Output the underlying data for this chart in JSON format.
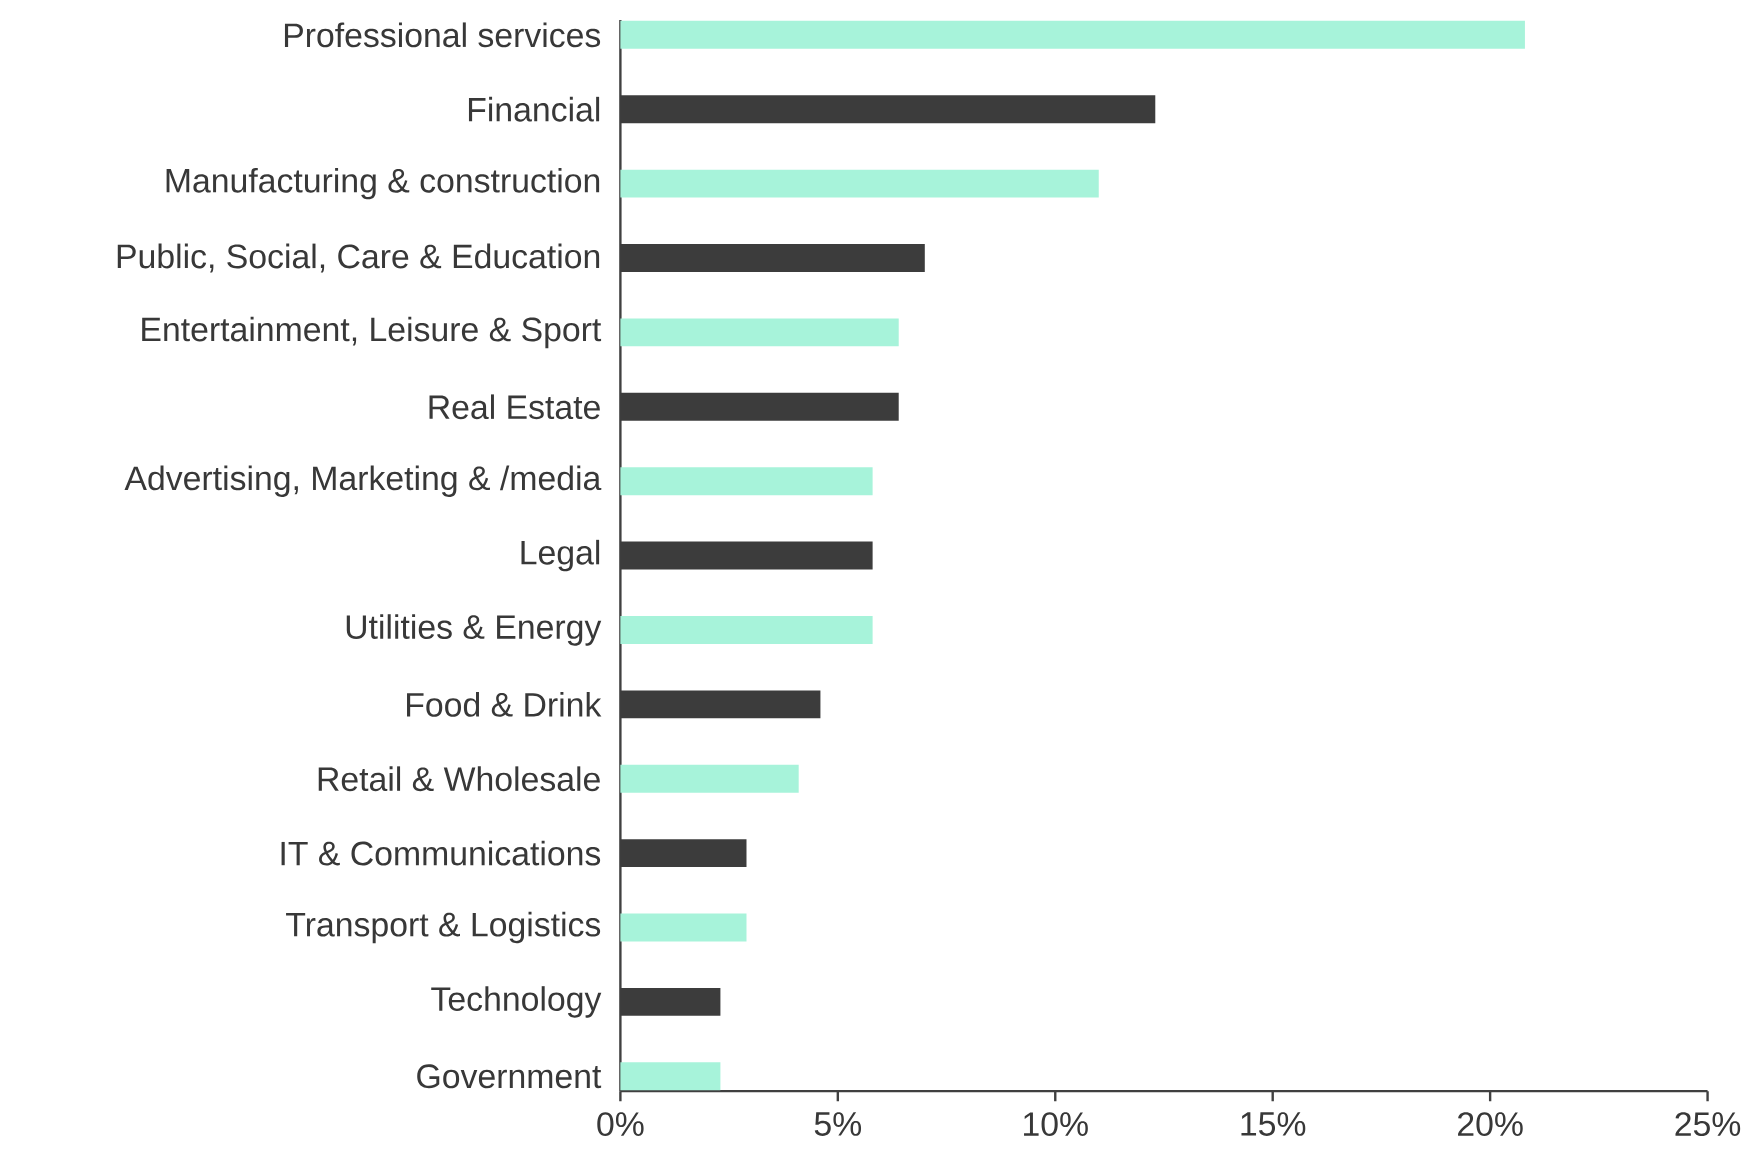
{
  "chart_data": {
    "type": "bar",
    "orientation": "horizontal",
    "categories": [
      "Professional services",
      "Financial",
      "Manufacturing & construction",
      "Public, Social, Care & Education",
      "Entertainment, Leisure & Sport",
      "Real Estate",
      "Advertising, Marketing & /media",
      "Legal",
      "Utilities & Energy",
      "Food & Drink",
      "Retail & Wholesale",
      "IT & Communications",
      "Transport & Logistics",
      "Technology",
      "Government"
    ],
    "values": [
      20.8,
      12.3,
      11.0,
      7.0,
      6.4,
      6.4,
      5.8,
      5.8,
      5.8,
      4.6,
      4.1,
      2.9,
      2.9,
      2.3,
      2.3
    ],
    "colors": [
      "#a7f3da",
      "#3c3c3c",
      "#a7f3da",
      "#3c3c3c",
      "#a7f3da",
      "#3c3c3c",
      "#a7f3da",
      "#3c3c3c",
      "#a7f3da",
      "#3c3c3c",
      "#a7f3da",
      "#3c3c3c",
      "#a7f3da",
      "#3c3c3c",
      "#a7f3da"
    ],
    "xlim": [
      0,
      25
    ],
    "xticks": [
      {
        "value": 0,
        "label": "0%"
      },
      {
        "value": 5,
        "label": "5%"
      },
      {
        "value": 10,
        "label": "10%"
      },
      {
        "value": 15,
        "label": "15%"
      },
      {
        "value": 20,
        "label": "20%"
      },
      {
        "value": 25,
        "label": "25%"
      }
    ],
    "grid": false
  }
}
